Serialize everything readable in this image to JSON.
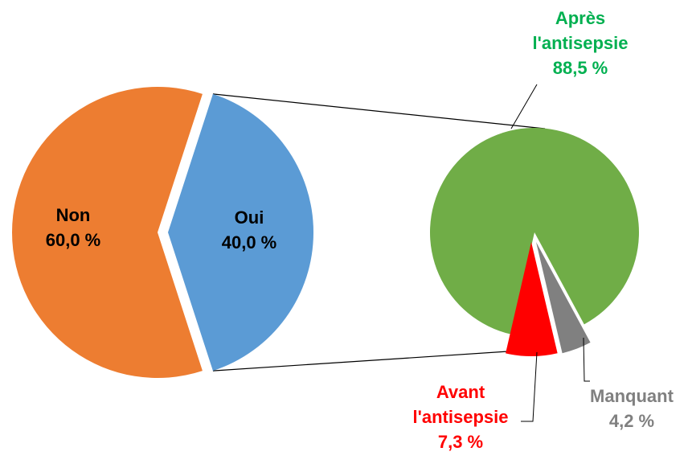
{
  "colors": {
    "non": "#ED7D31",
    "oui": "#5B9BD5",
    "apres": "#70AD47",
    "avant": "#FF0000",
    "manquant": "#808080",
    "apres_label": "#00B050",
    "avant_label": "#FF0000",
    "manquant_label": "#808080",
    "main_label": "#000000",
    "connector": "#000000"
  },
  "chart_data": [
    {
      "type": "pie",
      "slices": [
        {
          "key": "non",
          "label": "Non",
          "value": 60.0,
          "value_text": "60,0 %"
        },
        {
          "key": "oui",
          "label": "Oui",
          "value": 40.0,
          "value_text": "40,0 %"
        }
      ],
      "exploded_slice": "Oui"
    },
    {
      "type": "pie",
      "breakdown_of": "Oui",
      "slices": [
        {
          "key": "apres",
          "label_lines": [
            "Après",
            "l'antisepsie"
          ],
          "value": 88.5,
          "value_text": "88,5 %"
        },
        {
          "key": "manquant",
          "label_lines": [
            "Manquant"
          ],
          "value": 4.2,
          "value_text": "4,2 %"
        },
        {
          "key": "avant",
          "label_lines": [
            "Avant",
            "l'antisepsie"
          ],
          "value": 7.3,
          "value_text": "7,3 %"
        }
      ]
    }
  ]
}
